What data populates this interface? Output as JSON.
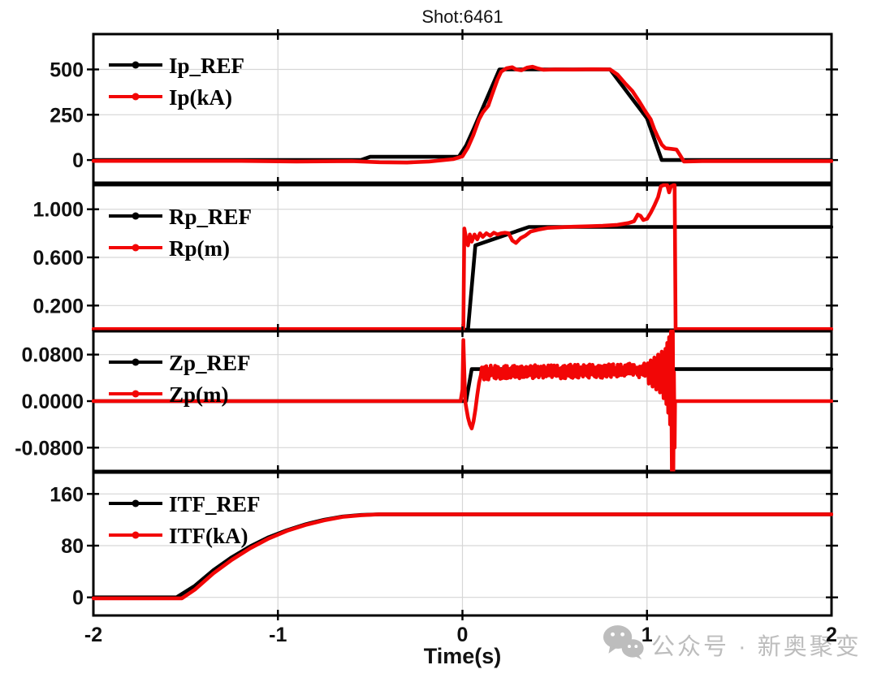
{
  "watermark": {
    "text": "公众号 · 新奥聚变",
    "icon": "wechat-icon",
    "color": "#bdbdbd"
  },
  "colors": {
    "ref_line": "#000000",
    "signal_line": "#f20606",
    "grid": "#d6d6d6",
    "axis": "#000000",
    "text": "#111111",
    "background": "#ffffff"
  },
  "chart_data": {
    "type": "line",
    "title": "Shot:6461",
    "xlabel": "Time(s)",
    "x_range": [
      -2,
      2
    ],
    "x_ticks": [
      {
        "v": -2,
        "label": "-2"
      },
      {
        "v": -1,
        "label": "-1"
      },
      {
        "v": 0,
        "label": "0"
      },
      {
        "v": 1,
        "label": "1"
      },
      {
        "v": 2,
        "label": "2"
      }
    ],
    "x_gridlines": [
      -1,
      0,
      1
    ],
    "legend_position": "top-left-inside",
    "grid": true,
    "subplots": [
      {
        "name": "plasma-current",
        "ylim": [
          -125,
          695
        ],
        "yticks": [
          {
            "v": 500,
            "label": "500"
          },
          {
            "v": 250,
            "label": "250"
          },
          {
            "v": 0,
            "label": "0"
          }
        ],
        "series": [
          {
            "name": "Ip_REF",
            "role": "ref",
            "points": [
              [
                -2,
                0
              ],
              [
                -0.55,
                0
              ],
              [
                -0.5,
                18
              ],
              [
                -0.02,
                18
              ],
              [
                0.02,
                80
              ],
              [
                0.06,
                170
              ],
              [
                0.2,
                500
              ],
              [
                0.8,
                500
              ],
              [
                1.0,
                230
              ],
              [
                1.08,
                0
              ],
              [
                2,
                0
              ]
            ]
          },
          {
            "name": "Ip(kA)",
            "role": "meas",
            "points": [
              [
                -2,
                -5
              ],
              [
                -1.2,
                -5
              ],
              [
                -0.9,
                -8
              ],
              [
                -0.6,
                -6
              ],
              [
                -0.45,
                -12
              ],
              [
                -0.3,
                -14
              ],
              [
                -0.18,
                -8
              ],
              [
                -0.05,
                5
              ],
              [
                0,
                20
              ],
              [
                0.03,
                70
              ],
              [
                0.06,
                140
              ],
              [
                0.09,
                225
              ],
              [
                0.11,
                262
              ],
              [
                0.14,
                300
              ],
              [
                0.16,
                360
              ],
              [
                0.19,
                445
              ],
              [
                0.21,
                488
              ],
              [
                0.24,
                507
              ],
              [
                0.27,
                512
              ],
              [
                0.29,
                500
              ],
              [
                0.32,
                495
              ],
              [
                0.35,
                510
              ],
              [
                0.38,
                515
              ],
              [
                0.41,
                505
              ],
              [
                0.44,
                498
              ],
              [
                0.5,
                500
              ],
              [
                0.6,
                499
              ],
              [
                0.7,
                501
              ],
              [
                0.8,
                500
              ],
              [
                0.84,
                472
              ],
              [
                0.88,
                425
              ],
              [
                0.92,
                382
              ],
              [
                0.96,
                320
              ],
              [
                0.99,
                270
              ],
              [
                1.02,
                225
              ],
              [
                1.04,
                170
              ],
              [
                1.06,
                125
              ],
              [
                1.08,
                85
              ],
              [
                1.1,
                65
              ],
              [
                1.13,
                62
              ],
              [
                1.16,
                58
              ],
              [
                1.18,
                25
              ],
              [
                1.2,
                -8
              ],
              [
                1.3,
                -6
              ],
              [
                2,
                -6
              ]
            ]
          }
        ]
      },
      {
        "name": "radial-position",
        "ylim": [
          0,
          1.2
        ],
        "yticks": [
          {
            "v": 1.0,
            "label": "1.000"
          },
          {
            "v": 0.6,
            "label": "0.600"
          },
          {
            "v": 0.2,
            "label": "0.200"
          }
        ],
        "series": [
          {
            "name": "Rp_REF",
            "role": "ref",
            "points": [
              [
                -2,
                0
              ],
              [
                0.03,
                0
              ],
              [
                0.07,
                0.7
              ],
              [
                0.36,
                0.853
              ],
              [
                2,
                0.853
              ]
            ]
          },
          {
            "name": "Rp(m)",
            "role": "meas",
            "points": [
              [
                -2,
                0.005
              ],
              [
                0.005,
                0.005
              ],
              [
                0.01,
                0.84
              ],
              [
                0.02,
                0.76
              ],
              [
                0.03,
                0.7
              ],
              [
                0.04,
                0.79
              ],
              [
                0.05,
                0.73
              ],
              [
                0.065,
                0.79
              ],
              [
                0.08,
                0.75
              ],
              [
                0.095,
                0.8
              ],
              [
                0.11,
                0.77
              ],
              [
                0.13,
                0.8
              ],
              [
                0.15,
                0.78
              ],
              [
                0.17,
                0.805
              ],
              [
                0.19,
                0.79
              ],
              [
                0.21,
                0.8
              ],
              [
                0.23,
                0.805
              ],
              [
                0.25,
                0.8
              ],
              [
                0.27,
                0.74
              ],
              [
                0.29,
                0.72
              ],
              [
                0.315,
                0.76
              ],
              [
                0.34,
                0.78
              ],
              [
                0.37,
                0.815
              ],
              [
                0.41,
                0.83
              ],
              [
                0.46,
                0.845
              ],
              [
                0.53,
                0.85
              ],
              [
                0.6,
                0.855
              ],
              [
                0.68,
                0.858
              ],
              [
                0.76,
                0.862
              ],
              [
                0.84,
                0.87
              ],
              [
                0.9,
                0.885
              ],
              [
                0.93,
                0.9
              ],
              [
                0.95,
                0.955
              ],
              [
                0.965,
                0.945
              ],
              [
                0.98,
                0.91
              ],
              [
                1.0,
                0.92
              ],
              [
                1.02,
                0.97
              ],
              [
                1.04,
                1.03
              ],
              [
                1.06,
                1.1
              ],
              [
                1.075,
                1.19
              ],
              [
                1.09,
                1.2
              ],
              [
                1.11,
                1.2
              ],
              [
                1.12,
                1.14
              ],
              [
                1.13,
                1.19
              ],
              [
                1.145,
                1.2
              ],
              [
                1.15,
                1.2
              ],
              [
                1.155,
                0.005
              ],
              [
                1.2,
                0.005
              ],
              [
                2,
                0.005
              ]
            ]
          }
        ]
      },
      {
        "name": "vertical-position",
        "ylim": [
          -0.12,
          0.12
        ],
        "yticks": [
          {
            "v": 0.08,
            "label": "0.0800"
          },
          {
            "v": 0,
            "label": "0.0000"
          },
          {
            "v": -0.08,
            "label": "-0.0800"
          }
        ],
        "series": [
          {
            "name": "Zp_REF",
            "role": "ref",
            "points": [
              [
                -2,
                0
              ],
              [
                0.02,
                0
              ],
              [
                0.05,
                0.055
              ],
              [
                2,
                0.055
              ]
            ]
          },
          {
            "name": "Zp(m)",
            "role": "meas",
            "segments": [
              {
                "points": [
                  [
                    -2,
                    0
                  ],
                  [
                    -0.01,
                    0
                  ],
                  [
                    0,
                    0.02
                  ],
                  [
                    0.005,
                    0.105
                  ],
                  [
                    0.01,
                    0.05
                  ],
                  [
                    0.015,
                    0
                  ],
                  [
                    0.02,
                    -0.01
                  ],
                  [
                    0.03,
                    -0.028
                  ],
                  [
                    0.04,
                    -0.04
                  ],
                  [
                    0.05,
                    -0.047
                  ],
                  [
                    0.06,
                    -0.035
                  ],
                  [
                    0.07,
                    -0.015
                  ],
                  [
                    0.08,
                    0.01
                  ],
                  [
                    0.09,
                    0.032
                  ],
                  [
                    0.1,
                    0.045
                  ]
                ]
              },
              {
                "noise": {
                  "t0": 0.105,
                  "t1": 1.0,
                  "center": 0.049,
                  "center_end": 0.053,
                  "amp": 0.012,
                  "step": 0.004,
                  "seed": 7
                }
              },
              {
                "points": [
                  [
                    1.005,
                    0.065
                  ],
                  [
                    1.01,
                    0.03
                  ],
                  [
                    1.02,
                    0.07
                  ],
                  [
                    1.03,
                    0.025
                  ],
                  [
                    1.04,
                    0.075
                  ],
                  [
                    1.05,
                    0.02
                  ],
                  [
                    1.06,
                    0.08
                  ],
                  [
                    1.07,
                    0.015
                  ],
                  [
                    1.08,
                    0.085
                  ],
                  [
                    1.09,
                    0.005
                  ],
                  [
                    1.1,
                    0.09
                  ],
                  [
                    1.105,
                    -0.005
                  ],
                  [
                    1.11,
                    0.1
                  ],
                  [
                    1.115,
                    -0.02
                  ],
                  [
                    1.12,
                    0.11
                  ],
                  [
                    1.125,
                    -0.04
                  ],
                  [
                    1.13,
                    0.12
                  ],
                  [
                    1.135,
                    -0.12
                  ],
                  [
                    1.14,
                    0.12
                  ],
                  [
                    1.143,
                    -0.12
                  ],
                  [
                    1.146,
                    0.05
                  ],
                  [
                    1.15,
                    -0.08
                  ],
                  [
                    1.152,
                    0
                  ],
                  [
                    1.2,
                    0
                  ],
                  [
                    2,
                    0
                  ]
                ]
              }
            ]
          }
        ]
      },
      {
        "name": "toroidal-field-current",
        "ylim": [
          -28,
          193
        ],
        "yticks": [
          {
            "v": 160,
            "label": "160"
          },
          {
            "v": 80,
            "label": "80"
          },
          {
            "v": 0,
            "label": "0"
          }
        ],
        "series": [
          {
            "name": "ITF_REF",
            "role": "ref",
            "points": [
              [
                -2,
                0
              ],
              [
                -1.55,
                0
              ],
              [
                -1.45,
                18
              ],
              [
                -1.35,
                42
              ],
              [
                -1.25,
                62
              ],
              [
                -1.15,
                79
              ],
              [
                -1.05,
                93
              ],
              [
                -0.95,
                104
              ],
              [
                -0.85,
                113
              ],
              [
                -0.75,
                120
              ],
              [
                -0.65,
                125
              ],
              [
                -0.55,
                127.5
              ],
              [
                -0.45,
                128.5
              ],
              [
                -0.3,
                128.5
              ],
              [
                2,
                128.5
              ]
            ]
          },
          {
            "name": "ITF(kA)",
            "role": "meas",
            "points": [
              [
                -2,
                -1.5
              ],
              [
                -1.52,
                -1.5
              ],
              [
                -1.45,
                12
              ],
              [
                -1.35,
                37
              ],
              [
                -1.25,
                58
              ],
              [
                -1.15,
                76
              ],
              [
                -1.05,
                91
              ],
              [
                -0.95,
                103
              ],
              [
                -0.85,
                112
              ],
              [
                -0.75,
                119
              ],
              [
                -0.65,
                124.5
              ],
              [
                -0.55,
                127
              ],
              [
                -0.45,
                128.5
              ],
              [
                -0.3,
                128.5
              ],
              [
                2,
                128.5
              ]
            ]
          }
        ]
      }
    ]
  }
}
